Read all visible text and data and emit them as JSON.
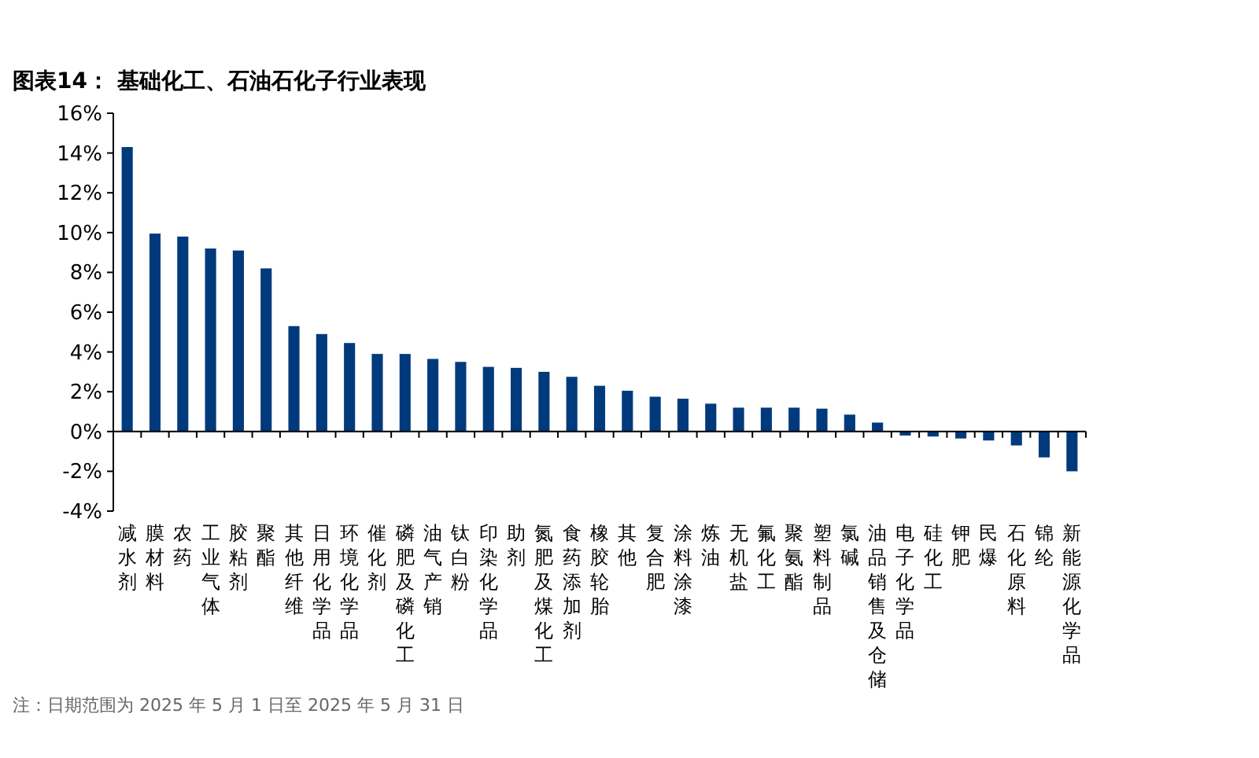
{
  "chart_data": {
    "type": "bar",
    "title": "图表14：  基础化工、石油石化子行业表现",
    "categories": [
      "减水剂",
      "膜材料",
      "农药",
      "工业气体",
      "胶粘剂",
      "聚酯",
      "其他纤维",
      "日用化学品",
      "环境化学品",
      "催化剂",
      "磷肥及磷化工",
      "油气产销",
      "钛白粉",
      "印染化学品",
      "助剂",
      "氮肥及煤化工",
      "食药添加剂",
      "橡胶轮胎",
      "其他",
      "复合肥",
      "涂料涂漆",
      "炼油",
      "无机盐",
      "氟化工",
      "聚氨酯",
      "塑料制品",
      "氯碱",
      "油品销售及仓储",
      "电子化学品",
      "硅化工",
      "钾肥",
      "民爆",
      "石化原料",
      "锦纶",
      "新能源化学品"
    ],
    "values": [
      14.3,
      9.95,
      9.8,
      9.2,
      9.1,
      8.2,
      5.3,
      4.9,
      4.45,
      3.9,
      3.9,
      3.65,
      3.5,
      3.25,
      3.2,
      3.0,
      2.75,
      2.3,
      2.05,
      1.75,
      1.65,
      1.4,
      1.2,
      1.2,
      1.2,
      1.15,
      0.85,
      0.45,
      -0.2,
      -0.25,
      -0.35,
      -0.45,
      -0.7,
      -1.3,
      -2.0
    ],
    "color": "#003a7d",
    "ylim": [
      -4,
      16
    ],
    "yticks": [
      {
        "value": -4,
        "label": "-4%"
      },
      {
        "value": -2,
        "label": "-2%"
      },
      {
        "value": 0,
        "label": "0%"
      },
      {
        "value": 2,
        "label": "2%"
      },
      {
        "value": 4,
        "label": "4%"
      },
      {
        "value": 6,
        "label": "6%"
      },
      {
        "value": 8,
        "label": "8%"
      },
      {
        "value": 10,
        "label": "10%"
      },
      {
        "value": 12,
        "label": "12%"
      },
      {
        "value": 14,
        "label": "14%"
      },
      {
        "value": 16,
        "label": "16%"
      }
    ],
    "annotations": [
      "注：日期范围为 2025 年 5 月 1 日至 2025 年 5 月 31 日"
    ]
  }
}
